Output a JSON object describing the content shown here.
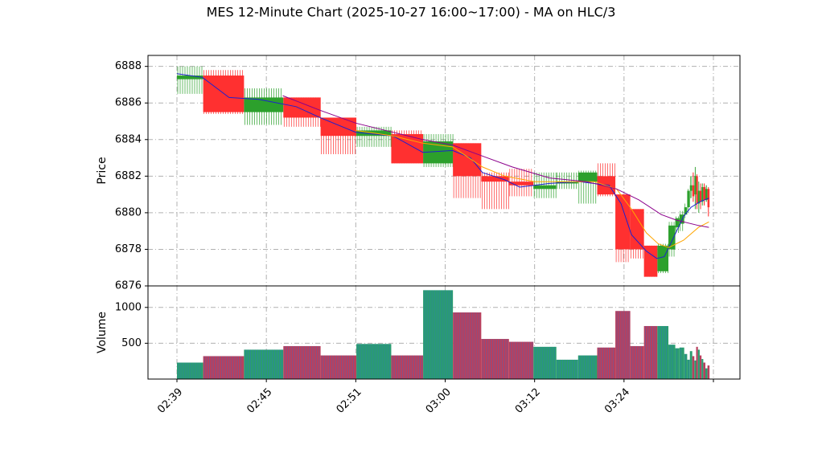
{
  "chart_data": {
    "type": "candlestick",
    "title": "MES 12-Minute Chart (2025-10-27 16:00~17:00) - MA on HLC/3",
    "colors": {
      "up": "#2ca02c",
      "down": "#ff3030",
      "volume_up": "#2a9d6f",
      "volume_down": "#b8405e",
      "volume_edge": "#2f6fcf",
      "ma_fast": "#1f1fcf",
      "ma_mid": "#ffa500",
      "ma_slow": "#8b008b",
      "grid": "#b0b0b0"
    },
    "price_panel": {
      "ylabel": "Price",
      "ylim": [
        6876,
        6888.6
      ],
      "yticks": [
        "6876",
        "6878",
        "6880",
        "6882",
        "6884",
        "6886",
        "6888"
      ],
      "grid": true
    },
    "volume_panel": {
      "ylabel": "Volume",
      "ylim": [
        0,
        1300
      ],
      "yticks": [
        "500",
        "1000"
      ],
      "grid": true
    },
    "x_axis": {
      "ticks": [
        "02:39",
        "02:45",
        "02:51",
        "03:00",
        "03:12",
        "03:24"
      ],
      "tick_index": [
        0,
        6,
        12,
        18,
        24,
        30
      ],
      "range_index": [
        0,
        36
      ]
    },
    "bars": [
      {
        "x": 0.0,
        "w": 1.76,
        "open": 6887.3,
        "high": 6888.0,
        "low": 6886.5,
        "close": 6887.5,
        "volume": 230
      },
      {
        "x": 1.76,
        "w": 2.74,
        "open": 6887.5,
        "high": 6887.8,
        "low": 6885.4,
        "close": 6885.5,
        "volume": 320
      },
      {
        "x": 4.5,
        "w": 2.64,
        "open": 6885.5,
        "high": 6886.8,
        "low": 6884.8,
        "close": 6886.3,
        "volume": 410
      },
      {
        "x": 7.14,
        "w": 2.5,
        "open": 6886.3,
        "high": 6886.3,
        "low": 6884.7,
        "close": 6885.2,
        "volume": 460
      },
      {
        "x": 9.64,
        "w": 2.4,
        "open": 6885.2,
        "high": 6885.2,
        "low": 6883.2,
        "close": 6884.2,
        "volume": 330
      },
      {
        "x": 12.04,
        "w": 2.34,
        "open": 6884.2,
        "high": 6884.7,
        "low": 6883.6,
        "close": 6884.5,
        "volume": 490
      },
      {
        "x": 14.38,
        "w": 2.14,
        "open": 6884.3,
        "high": 6884.5,
        "low": 6882.7,
        "close": 6882.7,
        "volume": 330
      },
      {
        "x": 16.52,
        "w": 2.0,
        "open": 6882.7,
        "high": 6884.3,
        "low": 6882.5,
        "close": 6883.9,
        "volume": 1240
      },
      {
        "x": 18.52,
        "w": 1.9,
        "open": 6883.8,
        "high": 6883.8,
        "low": 6880.8,
        "close": 6882.0,
        "volume": 930
      },
      {
        "x": 20.42,
        "w": 1.86,
        "open": 6882.0,
        "high": 6882.2,
        "low": 6880.2,
        "close": 6881.7,
        "volume": 560
      },
      {
        "x": 22.28,
        "w": 1.64,
        "open": 6881.7,
        "high": 6882.4,
        "low": 6880.9,
        "close": 6881.5,
        "volume": 520
      },
      {
        "x": 23.92,
        "w": 1.54,
        "open": 6881.3,
        "high": 6882.2,
        "low": 6880.8,
        "close": 6881.5,
        "volume": 450
      },
      {
        "x": 25.46,
        "w": 1.46,
        "open": 6881.6,
        "high": 6882.2,
        "low": 6881.3,
        "close": 6881.7,
        "volume": 270
      },
      {
        "x": 26.92,
        "w": 1.28,
        "open": 6881.7,
        "high": 6882.3,
        "low": 6880.5,
        "close": 6882.2,
        "volume": 330
      },
      {
        "x": 28.2,
        "w": 1.22,
        "open": 6882.0,
        "high": 6882.7,
        "low": 6880.9,
        "close": 6881.0,
        "volume": 440
      },
      {
        "x": 29.42,
        "w": 1.0,
        "open": 6881.0,
        "high": 6881.0,
        "low": 6877.3,
        "close": 6878.0,
        "volume": 950
      },
      {
        "x": 30.42,
        "w": 0.92,
        "open": 6880.2,
        "high": 6880.2,
        "low": 6877.5,
        "close": 6878.0,
        "volume": 460
      },
      {
        "x": 31.34,
        "w": 0.9,
        "open": 6878.2,
        "high": 6878.2,
        "low": 6876.5,
        "close": 6876.5,
        "volume": 740
      },
      {
        "x": 32.24,
        "w": 0.74,
        "open": 6876.8,
        "high": 6878.3,
        "low": 6876.7,
        "close": 6878.2,
        "volume": 740
      },
      {
        "x": 32.98,
        "w": 0.46,
        "open": 6878.0,
        "high": 6879.5,
        "low": 6877.6,
        "close": 6879.3,
        "volume": 480
      },
      {
        "x": 33.44,
        "w": 0.28,
        "open": 6879.2,
        "high": 6879.8,
        "low": 6878.9,
        "close": 6879.7,
        "volume": 430
      },
      {
        "x": 33.72,
        "w": 0.32,
        "open": 6879.4,
        "high": 6880.1,
        "low": 6879.0,
        "close": 6879.9,
        "volume": 440
      },
      {
        "x": 34.04,
        "w": 0.2,
        "open": 6879.9,
        "high": 6880.5,
        "low": 6879.7,
        "close": 6880.3,
        "volume": 350
      },
      {
        "x": 34.24,
        "w": 0.18,
        "open": 6880.3,
        "high": 6881.3,
        "low": 6880.0,
        "close": 6881.2,
        "volume": 270
      },
      {
        "x": 34.42,
        "w": 0.16,
        "open": 6881.2,
        "high": 6882.0,
        "low": 6880.8,
        "close": 6881.5,
        "volume": 390
      },
      {
        "x": 34.58,
        "w": 0.14,
        "open": 6881.5,
        "high": 6882.2,
        "low": 6880.6,
        "close": 6880.9,
        "volume": 320
      },
      {
        "x": 34.72,
        "w": 0.12,
        "open": 6881.0,
        "high": 6882.5,
        "low": 6880.2,
        "close": 6882.0,
        "volume": 260
      },
      {
        "x": 34.84,
        "w": 0.12,
        "open": 6882.0,
        "high": 6882.1,
        "low": 6880.2,
        "close": 6880.5,
        "volume": 450
      },
      {
        "x": 34.96,
        "w": 0.12,
        "open": 6880.5,
        "high": 6881.7,
        "low": 6880.0,
        "close": 6881.2,
        "volume": 410
      },
      {
        "x": 35.08,
        "w": 0.12,
        "open": 6881.2,
        "high": 6881.6,
        "low": 6880.2,
        "close": 6880.6,
        "volume": 330
      },
      {
        "x": 35.2,
        "w": 0.12,
        "open": 6880.6,
        "high": 6881.6,
        "low": 6880.4,
        "close": 6881.4,
        "volume": 280
      },
      {
        "x": 35.32,
        "w": 0.14,
        "open": 6881.4,
        "high": 6881.6,
        "low": 6880.4,
        "close": 6880.7,
        "volume": 230
      },
      {
        "x": 35.46,
        "w": 0.14,
        "open": 6880.7,
        "high": 6881.5,
        "low": 6880.6,
        "close": 6881.3,
        "volume": 150
      },
      {
        "x": 35.6,
        "w": 0.14,
        "open": 6881.3,
        "high": 6881.4,
        "low": 6879.8,
        "close": 6880.3,
        "volume": 190
      }
    ],
    "ma_lines": [
      {
        "name": "fast",
        "color_key": "ma_fast",
        "points": [
          [
            0,
            6887.6
          ],
          [
            1.7,
            6887.4
          ],
          [
            3.5,
            6886.3
          ],
          [
            5.5,
            6886.2
          ],
          [
            8.0,
            6885.8
          ],
          [
            9.6,
            6885.2
          ],
          [
            12.0,
            6884.4
          ],
          [
            14.5,
            6884.2
          ],
          [
            16.5,
            6883.3
          ],
          [
            18.5,
            6883.4
          ],
          [
            19.7,
            6883.0
          ],
          [
            20.5,
            6882.2
          ],
          [
            22.0,
            6881.8
          ],
          [
            23.0,
            6881.4
          ],
          [
            25.0,
            6881.6
          ],
          [
            27.0,
            6881.7
          ],
          [
            29.0,
            6881.5
          ],
          [
            29.8,
            6880.5
          ],
          [
            30.5,
            6878.8
          ],
          [
            31.5,
            6877.9
          ],
          [
            32.2,
            6877.5
          ],
          [
            32.7,
            6877.6
          ],
          [
            33.3,
            6878.6
          ],
          [
            34.0,
            6879.8
          ],
          [
            34.5,
            6880.3
          ],
          [
            35.1,
            6880.6
          ],
          [
            35.7,
            6880.8
          ]
        ]
      },
      {
        "name": "mid",
        "color_key": "ma_mid",
        "points": [
          [
            12.0,
            6884.5
          ],
          [
            14.5,
            6884.2
          ],
          [
            16.5,
            6883.8
          ],
          [
            18.5,
            6883.6
          ],
          [
            20.5,
            6882.5
          ],
          [
            22.0,
            6882.0
          ],
          [
            24.0,
            6881.7
          ],
          [
            26.0,
            6881.7
          ],
          [
            28.0,
            6881.7
          ],
          [
            29.5,
            6881.3
          ],
          [
            30.5,
            6880.2
          ],
          [
            31.5,
            6878.9
          ],
          [
            32.3,
            6878.3
          ],
          [
            33.0,
            6878.1
          ],
          [
            34.0,
            6878.5
          ],
          [
            35.0,
            6879.2
          ],
          [
            35.7,
            6879.5
          ]
        ]
      },
      {
        "name": "slow",
        "color_key": "ma_slow",
        "points": [
          [
            7.1,
            6886.4
          ],
          [
            9.6,
            6885.6
          ],
          [
            12.0,
            6884.9
          ],
          [
            14.5,
            6884.4
          ],
          [
            16.5,
            6884.0
          ],
          [
            18.5,
            6883.7
          ],
          [
            20.5,
            6883.1
          ],
          [
            22.5,
            6882.5
          ],
          [
            25.0,
            6881.9
          ],
          [
            27.5,
            6881.7
          ],
          [
            29.5,
            6881.3
          ],
          [
            31.0,
            6880.7
          ],
          [
            32.5,
            6879.9
          ],
          [
            33.5,
            6879.6
          ],
          [
            35.0,
            6879.3
          ],
          [
            35.7,
            6879.2
          ]
        ]
      }
    ]
  }
}
